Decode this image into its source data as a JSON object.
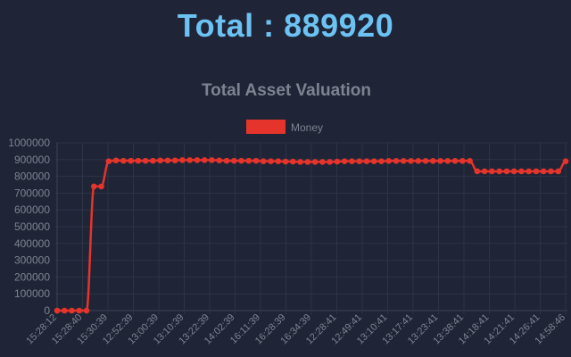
{
  "header": {
    "total_label": "Total",
    "total_sep": " : ",
    "total_value": "889920"
  },
  "colors": {
    "background": "#1f2536",
    "total_text": "#6cc2f2",
    "series": "#e5342b",
    "muted_text": "#7c8391"
  },
  "chart_data": {
    "type": "line",
    "title": "Total Asset Valuation",
    "legend": {
      "position": "top-center"
    },
    "grid": true,
    "ylim": [
      0,
      1000000
    ],
    "yticks": [
      0,
      100000,
      200000,
      300000,
      400000,
      500000,
      600000,
      700000,
      800000,
      900000,
      1000000
    ],
    "x_tick_labels": [
      "15:28:12",
      "15:28:40",
      "15:30:39",
      "12:52:39",
      "13:00:39",
      "13:10:39",
      "13:22:39",
      "14:02:39",
      "16:11:39",
      "16:28:39",
      "16:34:39",
      "12:28:41",
      "12:49:41",
      "13:10:41",
      "13:17:41",
      "13:23:41",
      "13:38:41",
      "14:18:41",
      "14:21:41",
      "14:26:41",
      "14:58:46"
    ],
    "series": [
      {
        "name": "Money",
        "values": [
          0,
          0,
          0,
          0,
          0,
          740000,
          740000,
          890000,
          895000,
          893000,
          893000,
          893000,
          893000,
          893000,
          895000,
          895000,
          895000,
          897000,
          897000,
          897000,
          897000,
          897000,
          895000,
          893000,
          893000,
          893000,
          893000,
          893000,
          890000,
          890000,
          890000,
          888000,
          888000,
          886000,
          886000,
          886000,
          886000,
          886000,
          888000,
          890000,
          890000,
          890000,
          890000,
          890000,
          890000,
          892000,
          892000,
          892000,
          892000,
          892000,
          892000,
          892000,
          892000,
          892000,
          892000,
          892000,
          892000,
          830000,
          830000,
          830000,
          830000,
          830000,
          830000,
          830000,
          830000,
          830000,
          830000,
          830000,
          830000,
          889920
        ]
      }
    ]
  }
}
